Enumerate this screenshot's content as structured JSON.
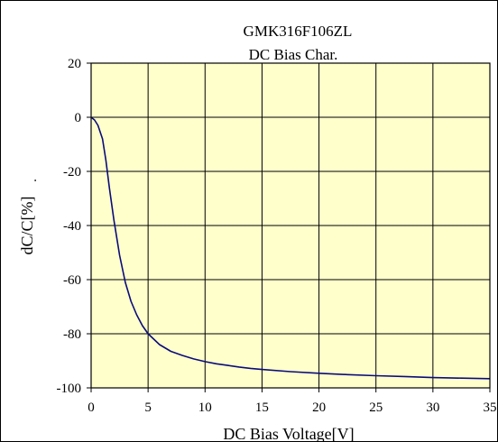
{
  "chart_data": {
    "type": "line",
    "title": "GMK316F106ZL",
    "subtitle": "DC Bias Char.",
    "xlabel": "DC Bias Voltage[V]",
    "ylabel": "dC/C[%]",
    "ylabel_suffix": ".",
    "xlim": [
      0,
      35
    ],
    "ylim": [
      -100,
      20
    ],
    "x_ticks": [
      0,
      5,
      10,
      15,
      20,
      25,
      30,
      35
    ],
    "y_ticks": [
      20,
      0,
      -20,
      -40,
      -60,
      -80,
      -100
    ],
    "grid": true,
    "legend": "none",
    "series": [
      {
        "x": [
          0,
          0.3,
          0.6,
          1.0,
          1.3,
          1.6,
          2.0,
          2.5,
          3.0,
          3.5,
          4.0,
          4.5,
          5.0,
          5.5,
          6.0,
          7.0,
          8.0,
          9.0,
          10.0,
          11.0,
          12.0,
          13.0,
          14.0,
          15.0,
          17.5,
          20.0,
          22.5,
          25.0,
          27.5,
          30.0,
          32.5,
          35.0
        ],
        "values": [
          0,
          -1,
          -3,
          -8,
          -16,
          -26,
          -38,
          -51,
          -61,
          -68,
          -73,
          -77,
          -80,
          -82,
          -84,
          -86.5,
          -88,
          -89.3,
          -90.3,
          -91.1,
          -91.7,
          -92.3,
          -92.8,
          -93.2,
          -94,
          -94.6,
          -95.1,
          -95.5,
          -95.8,
          -96.2,
          -96.4,
          -96.6
        ]
      }
    ],
    "colors": {
      "plot_bg": "#ffffcc",
      "line": "#0b0b7a",
      "grid": "#000000",
      "frame": "#000000"
    }
  }
}
